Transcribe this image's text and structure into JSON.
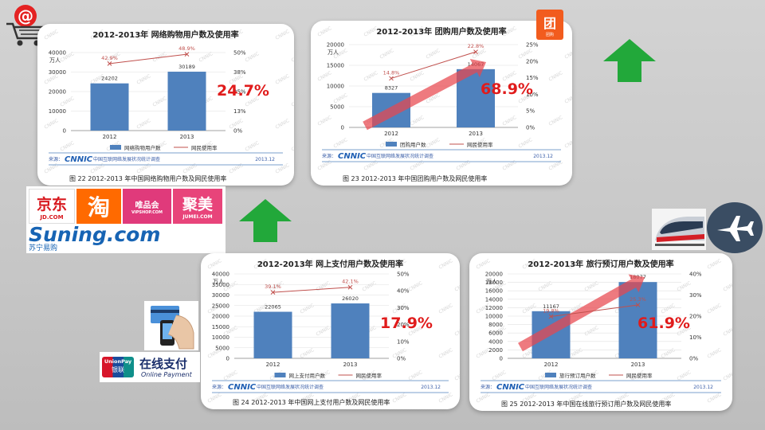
{
  "chart_data": [
    {
      "type": "bar",
      "title": "2012-2013年 网络购物用户数及使用率",
      "ylabel": "万人",
      "categories": [
        "2012",
        "2013"
      ],
      "ylim": [
        0,
        40000
      ],
      "y2lim": [
        0,
        0.5
      ],
      "yticks": [
        "40000",
        "30000",
        "20000",
        "10000",
        "0"
      ],
      "y2ticks": [
        "50%",
        "38%",
        "25%",
        "13%",
        "0%"
      ],
      "series": [
        {
          "name": "网络购物用户数",
          "kind": "bar",
          "values": [
            24202,
            30189
          ],
          "labels": [
            "24202",
            "30189"
          ]
        },
        {
          "name": "网民使用率",
          "kind": "line",
          "values": [
            0.429,
            0.489
          ],
          "labels": [
            "42.9%",
            "48.9%"
          ]
        }
      ],
      "growth_label": "24.7%",
      "source": "来源：",
      "source_org": "中国互联网络发展状况统计调查",
      "source_date": "2013.12",
      "caption": "图 22  2012-2013 年中国网络购物用户数及网民使用率"
    },
    {
      "type": "bar",
      "title": "2012-2013年 团购用户数及使用率",
      "ylabel": "万人",
      "categories": [
        "2012",
        "2013"
      ],
      "ylim": [
        0,
        20000
      ],
      "y2lim": [
        0,
        0.25
      ],
      "yticks": [
        "20000",
        "15000",
        "10000",
        "5000",
        "0"
      ],
      "y2ticks": [
        "25%",
        "20%",
        "15%",
        "10%",
        "5%",
        "0%"
      ],
      "series": [
        {
          "name": "团购用户数",
          "kind": "bar",
          "values": [
            8327,
            14067
          ],
          "labels": [
            "8327",
            "14067"
          ]
        },
        {
          "name": "网民使用率",
          "kind": "line",
          "values": [
            0.148,
            0.228
          ],
          "labels": [
            "14.8%",
            "22.8%"
          ]
        }
      ],
      "growth_label": "68.9%",
      "source": "来源：",
      "source_org": "中国互联网络发展状况统计调查",
      "source_date": "2013.12",
      "caption": "图 23  2012-2013 年中国团购用户数及网民使用率"
    },
    {
      "type": "bar",
      "title": "2012-2013年 网上支付用户数及使用率",
      "ylabel": "万人",
      "categories": [
        "2012",
        "2013"
      ],
      "ylim": [
        0,
        40000
      ],
      "y2lim": [
        0,
        0.5
      ],
      "yticks": [
        "40000",
        "35000",
        "30000",
        "25000",
        "20000",
        "15000",
        "10000",
        "5000",
        "0"
      ],
      "y2ticks": [
        "50%",
        "40%",
        "30%",
        "20%",
        "10%",
        "0%"
      ],
      "series": [
        {
          "name": "网上支付用户数",
          "kind": "bar",
          "values": [
            22065,
            26020
          ],
          "labels": [
            "22065",
            "26020"
          ]
        },
        {
          "name": "网民使用率",
          "kind": "line",
          "values": [
            0.391,
            0.421
          ],
          "labels": [
            "39.1%",
            "42.1%"
          ]
        }
      ],
      "growth_label": "17.9%",
      "source": "来源：",
      "source_org": "中国互联网络发展状况统计调查",
      "source_date": "2013.12",
      "caption": "图 24   2012-2013 年中国网上支付用户数及网民使用率"
    },
    {
      "type": "bar",
      "title": "2012-2013年 旅行预订用户数及使用率",
      "ylabel": "万人",
      "categories": [
        "2012",
        "2013"
      ],
      "ylim": [
        0,
        20000
      ],
      "y2lim": [
        0,
        0.4
      ],
      "yticks": [
        "20000",
        "18000",
        "16000",
        "14000",
        "12000",
        "10000",
        "8000",
        "6000",
        "4000",
        "2000",
        "0"
      ],
      "y2ticks": [
        "40%",
        "30%",
        "20%",
        "10%",
        "0%"
      ],
      "series": [
        {
          "name": "旅行预订用户数",
          "kind": "bar",
          "values": [
            11167,
            18077
          ],
          "labels": [
            "11167",
            "18077"
          ]
        },
        {
          "name": "网民使用率",
          "kind": "line",
          "values": [
            0.198,
            0.253
          ],
          "labels": [
            "19.8%",
            "25.3%"
          ]
        }
      ],
      "growth_label": "61.9%",
      "source": "来源：",
      "source_org": "中国互联网络发展状况统计调查",
      "source_date": "2013.12",
      "caption": "图 25    2012-2013 年中国在线旅行预订用户数及网民使用率"
    }
  ],
  "logos": {
    "jd": {
      "cn": "京东",
      "en": "JD.COM"
    },
    "taobao": "淘",
    "vip": {
      "cn": "唯品会",
      "en": "VIPSHOP.COM"
    },
    "jumei": {
      "cn": "聚美",
      "en": "JUMEI.COM"
    },
    "suning": {
      "en": "Suning.com",
      "cn": "苏宁易购"
    },
    "tuan": "团",
    "tuan_sub": "团购",
    "unionpay": {
      "brand": "UnionPay",
      "cn": "银联",
      "title": "在线支付",
      "sub": "Online Payment"
    },
    "cnnic": "CNNIC",
    "at_symbol": "@"
  },
  "colors": {
    "bar": "#4f81bd",
    "line": "#c0504d",
    "growth_text": "#e01b1b",
    "growth_arrow": "#e8474e",
    "up_arrow": "#22a83a",
    "card_bg": "#ffffff",
    "page_bg": "#c8c8c8"
  },
  "icons": [
    "shopping-cart-icon",
    "up-arrow-icon",
    "train-icon",
    "airplane-icon",
    "card-payment-icon"
  ]
}
